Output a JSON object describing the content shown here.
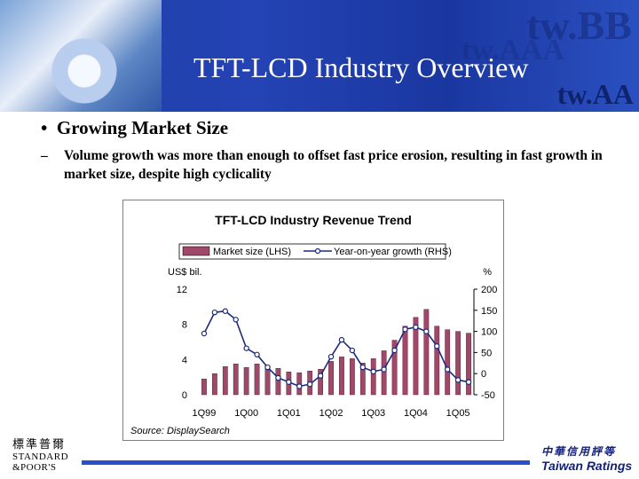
{
  "header": {
    "title": "TFT-LCD Industry Overview",
    "watermark_top": "tw.BB",
    "watermark_mid": "tw.AAA",
    "watermark_bottom": "tw.AA"
  },
  "content": {
    "bullet": "Growing Market Size",
    "dash": "–",
    "sub_bullet": "Volume growth was more than enough to offset fast price erosion, resulting in fast growth in market size, despite high cyclicality"
  },
  "chart_data": {
    "type": "bar",
    "title": "TFT-LCD Industry Revenue Trend",
    "source": "Source: DisplaySearch",
    "ylabel_left": "US$ bil.",
    "ylabel_right": "%",
    "ylim_left": [
      0,
      12
    ],
    "ylim_right": [
      -50,
      200
    ],
    "yticks_left": [
      0,
      4,
      8,
      12
    ],
    "yticks_right": [
      -50,
      0,
      50,
      100,
      150,
      200
    ],
    "x_tick_labels": [
      "1Q99",
      "1Q00",
      "1Q01",
      "1Q02",
      "1Q03",
      "1Q04",
      "1Q05"
    ],
    "colors": {
      "bar": "#a0486a",
      "line": "#1b2a7a",
      "marker_fill": "#ffffff"
    },
    "series": [
      {
        "name": "Market size (LHS)",
        "kind": "bar",
        "axis": "left",
        "values": [
          1.8,
          2.4,
          3.2,
          3.5,
          3.1,
          3.5,
          3.3,
          3.0,
          2.6,
          2.5,
          2.7,
          2.9,
          3.8,
          4.3,
          4.1,
          3.6,
          4.1,
          5.0,
          6.2,
          7.8,
          8.8,
          9.7,
          7.8,
          7.4,
          7.2,
          7.0
        ]
      },
      {
        "name": "Year-on-year growth (RHS)",
        "kind": "line",
        "axis": "right",
        "values": [
          95,
          145,
          148,
          128,
          60,
          45,
          15,
          -10,
          -20,
          -30,
          -25,
          -5,
          40,
          80,
          55,
          15,
          5,
          10,
          55,
          105,
          110,
          100,
          65,
          10,
          -15,
          -20
        ]
      }
    ],
    "legend": "top-center"
  },
  "footer": {
    "left_logo_cjk": "標準普爾",
    "left_logo_line1": "STANDARD",
    "left_logo_line2": "&POOR'S",
    "right_logo_cjk": "中華信用評等",
    "right_logo_text": "Taiwan Ratings"
  }
}
